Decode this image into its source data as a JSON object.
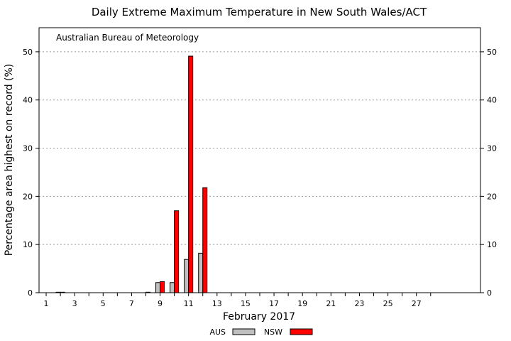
{
  "chart_data": {
    "type": "bar",
    "title": "Daily Extreme Maximum Temperature in New South Wales/ACT",
    "annotation": "Australian Bureau of Meteorology",
    "xlabel": "February 2017",
    "ylabel": "Percentage area highest on record (%)",
    "x": [
      1,
      2,
      3,
      4,
      5,
      6,
      7,
      8,
      9,
      10,
      11,
      12,
      13,
      14,
      15,
      16,
      17,
      18,
      19,
      20,
      21,
      22,
      23,
      24,
      25,
      26,
      27,
      28
    ],
    "x_ticks": [
      "1",
      "3",
      "5",
      "7",
      "9",
      "11",
      "13",
      "15",
      "17",
      "19",
      "21",
      "23",
      "25",
      "27"
    ],
    "xlim": [
      0.5,
      31.5
    ],
    "ylim": [
      0,
      55
    ],
    "y_ticks": [
      "0",
      "10",
      "20",
      "30",
      "40",
      "50"
    ],
    "grid": "horizontal dotted",
    "legend_position": "bottom-center",
    "series": [
      {
        "name": "AUS",
        "color": "#c0c0c0",
        "values": [
          0,
          0.1,
          0,
          0,
          0,
          0,
          0,
          0,
          2.1,
          2.1,
          6.9,
          8.2,
          0,
          0,
          0,
          0,
          0,
          0,
          0,
          0,
          0,
          0,
          0,
          0,
          0,
          0,
          0,
          0
        ]
      },
      {
        "name": "NSW",
        "color": "#ff0000",
        "values": [
          0,
          0.1,
          0,
          0,
          0,
          0,
          0,
          0.1,
          2.3,
          17.0,
          49.1,
          21.8,
          0,
          0,
          0,
          0,
          0,
          0,
          0,
          0,
          0,
          0,
          0,
          0,
          0,
          0,
          0,
          0
        ]
      }
    ]
  }
}
